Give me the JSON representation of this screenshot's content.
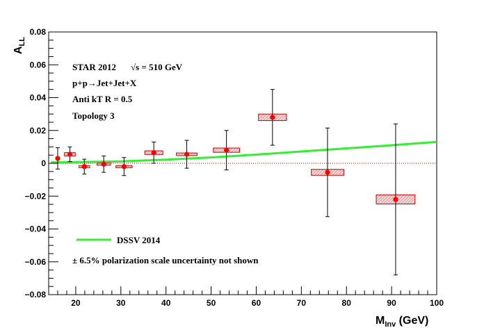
{
  "chart_data": {
    "type": "scatter",
    "xlabel_main": "M",
    "xlabel_sub": "Inv",
    "xlabel_unit": " (GeV)",
    "ylabel_main": "A",
    "ylabel_sub": "LL",
    "xlim": [
      14,
      100
    ],
    "ylim": [
      -0.08,
      0.08
    ],
    "x_ticks": [
      20,
      30,
      40,
      50,
      60,
      70,
      80,
      90,
      100
    ],
    "y_ticks": [
      -0.08,
      -0.06,
      -0.04,
      -0.02,
      0,
      0.02,
      0.04,
      0.06,
      0.08
    ],
    "y_tick_labels": [
      "−0.08",
      "−0.06",
      "−0.04",
      "−0.02",
      "0",
      "0.02",
      "0.04",
      "0.06",
      "0.08"
    ],
    "grid": false,
    "annotations": {
      "line1": "STAR 2012",
      "line1_sqrt": "√s = 510 GeV",
      "line2": "p+p→Jet+Jet+X",
      "line3": "Anti kT R = 0.5",
      "line4": "Topology 3",
      "scale_note": "± 6.5% polarization scale uncertainty not shown"
    },
    "legend": {
      "position": "bottom-left",
      "label": "DSSV 2014",
      "color": "#33ee33"
    },
    "colors": {
      "points": "#ff0000",
      "sys_box": "#cc0000",
      "zero_line": "#cc0000",
      "theory": "#33ee33"
    },
    "points": [
      {
        "x": 16.0,
        "y": 0.003,
        "stat": 0.0065,
        "sys": 0.0008,
        "xhw": 0.0
      },
      {
        "x": 18.7,
        "y": 0.0055,
        "stat": 0.0045,
        "sys": 0.001,
        "xhw": 1.2
      },
      {
        "x": 21.9,
        "y": -0.002,
        "stat": 0.0045,
        "sys": 0.0006,
        "xhw": 1.2
      },
      {
        "x": 26.2,
        "y": -0.0005,
        "stat": 0.005,
        "sys": 0.0006,
        "xhw": 1.5
      },
      {
        "x": 30.7,
        "y": -0.002,
        "stat": 0.0055,
        "sys": 0.0006,
        "xhw": 1.8
      },
      {
        "x": 37.3,
        "y": 0.0065,
        "stat": 0.0065,
        "sys": 0.0011,
        "xhw": 2.0
      },
      {
        "x": 44.6,
        "y": 0.0055,
        "stat": 0.0085,
        "sys": 0.0008,
        "xhw": 2.3
      },
      {
        "x": 53.4,
        "y": 0.008,
        "stat": 0.012,
        "sys": 0.0013,
        "xhw": 2.9
      },
      {
        "x": 63.6,
        "y": 0.028,
        "stat": 0.017,
        "sys": 0.002,
        "xhw": 3.1
      },
      {
        "x": 75.8,
        "y": -0.0055,
        "stat": 0.027,
        "sys": 0.0018,
        "xhw": 3.6
      },
      {
        "x": 90.9,
        "y": -0.022,
        "stat": 0.046,
        "sys": 0.0028,
        "xhw": 4.3
      }
    ],
    "theory": [
      {
        "x": 14.5,
        "y": 0.0005
      },
      {
        "x": 20,
        "y": 0.0007
      },
      {
        "x": 30,
        "y": 0.0012
      },
      {
        "x": 40,
        "y": 0.0022
      },
      {
        "x": 50,
        "y": 0.0036
      },
      {
        "x": 60,
        "y": 0.0053
      },
      {
        "x": 70,
        "y": 0.0072
      },
      {
        "x": 80,
        "y": 0.0091
      },
      {
        "x": 90,
        "y": 0.011
      },
      {
        "x": 100,
        "y": 0.013
      }
    ]
  }
}
